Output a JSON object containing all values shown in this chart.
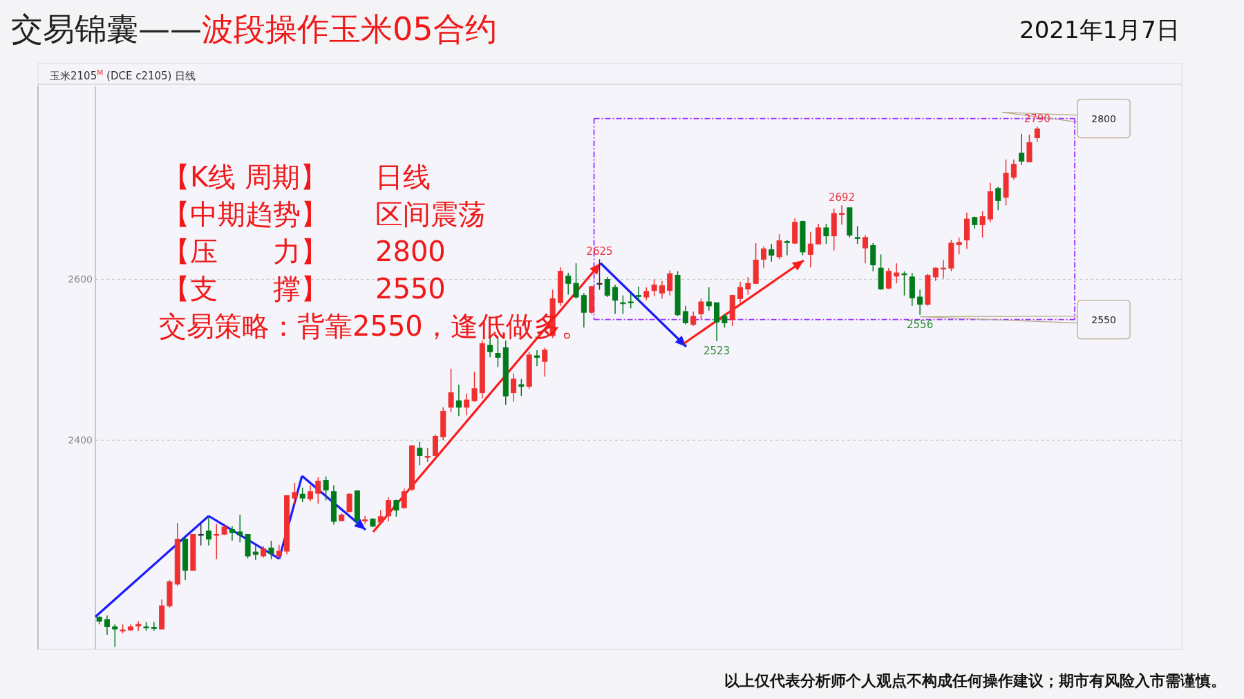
{
  "chart_data": {
    "type": "candlestick",
    "title": "交易锦囊——",
    "subtitle": "波段操作玉米05合约",
    "categories": [
      null,
      null,
      null,
      null,
      null,
      null,
      null,
      null,
      null,
      null,
      null,
      null,
      null,
      null,
      null,
      null,
      null,
      null,
      null,
      null,
      null,
      null,
      null,
      null,
      null,
      null,
      null,
      null,
      null,
      null,
      null,
      null,
      null,
      null,
      null,
      null,
      null,
      null,
      null,
      null,
      null,
      null,
      null,
      null,
      null,
      null,
      null,
      null,
      null,
      null,
      null,
      null,
      null,
      null,
      null,
      null,
      null,
      null,
      null,
      null,
      null,
      null,
      null,
      null,
      null,
      null,
      null,
      null,
      null,
      null,
      null,
      null,
      null,
      null,
      null,
      null,
      null,
      null,
      null,
      null,
      null,
      null,
      null,
      null,
      null,
      null,
      null,
      null,
      null,
      null,
      null,
      null,
      null,
      null,
      null,
      null,
      null,
      null,
      null,
      null,
      null,
      null,
      null,
      null,
      null,
      null,
      null,
      null,
      null,
      null,
      null,
      null,
      null,
      null,
      null,
      null,
      null,
      null,
      null,
      null,
      null
    ],
    "ohlc": [
      [
        2180,
        2181,
        2171,
        2175
      ],
      [
        2177,
        2182,
        2158,
        2168
      ],
      [
        2168,
        2171,
        2143,
        2165
      ],
      [
        2163,
        2171,
        2160,
        2164
      ],
      [
        2164,
        2171,
        2163,
        2168
      ],
      [
        2169,
        2175,
        2163,
        2171
      ],
      [
        2168,
        2174,
        2163,
        2167
      ],
      [
        2167,
        2174,
        2163,
        2166
      ],
      [
        2165,
        2202,
        2165,
        2194
      ],
      [
        2194,
        2226,
        2192,
        2224
      ],
      [
        2221,
        2297,
        2219,
        2277
      ],
      [
        2277,
        2279,
        2226,
        2238
      ],
      [
        2238,
        2283,
        2238,
        2283
      ],
      [
        2283,
        2296,
        2269,
        2283
      ],
      [
        2287,
        2304,
        2269,
        2277
      ],
      [
        2282,
        2296,
        2252,
        2283
      ],
      [
        2283,
        2294,
        2282,
        2292
      ],
      [
        2289,
        2293,
        2275,
        2285
      ],
      [
        2286,
        2307,
        2273,
        2282
      ],
      [
        2283,
        2283,
        2253,
        2256
      ],
      [
        2261,
        2269,
        2251,
        2258
      ],
      [
        2256,
        2268,
        2254,
        2265
      ],
      [
        2266,
        2275,
        2252,
        2259
      ],
      [
        2256,
        2270,
        2253,
        2262
      ],
      [
        2262,
        2331,
        2258,
        2331
      ],
      [
        2328,
        2347,
        2320,
        2335
      ],
      [
        2333,
        2341,
        2323,
        2328
      ],
      [
        2327,
        2344,
        2324,
        2336
      ],
      [
        2334,
        2354,
        2321,
        2349
      ],
      [
        2350,
        2355,
        2325,
        2338
      ],
      [
        2336,
        2344,
        2295,
        2299
      ],
      [
        2300,
        2309,
        2299,
        2307
      ],
      [
        2311,
        2334,
        2311,
        2333
      ],
      [
        2337,
        2337,
        2293,
        2300
      ],
      [
        2300,
        2306,
        2296,
        2301
      ],
      [
        2302,
        2303,
        2292,
        2293
      ],
      [
        2298,
        2313,
        2295,
        2305
      ],
      [
        2306,
        2329,
        2299,
        2325
      ],
      [
        2325,
        2326,
        2305,
        2313
      ],
      [
        2316,
        2340,
        2315,
        2336
      ],
      [
        2339,
        2394,
        2337,
        2393
      ],
      [
        2390,
        2398,
        2369,
        2381
      ],
      [
        2379,
        2390,
        2373,
        2380
      ],
      [
        2381,
        2407,
        2380,
        2405
      ],
      [
        2404,
        2441,
        2400,
        2436
      ],
      [
        2441,
        2489,
        2435,
        2459
      ],
      [
        2449,
        2469,
        2430,
        2441
      ],
      [
        2441,
        2458,
        2431,
        2450
      ],
      [
        2449,
        2485,
        2448,
        2464
      ],
      [
        2459,
        2524,
        2452,
        2520
      ],
      [
        2518,
        2527,
        2503,
        2510
      ],
      [
        2508,
        2529,
        2491,
        2503
      ],
      [
        2515,
        2524,
        2444,
        2455
      ],
      [
        2459,
        2483,
        2448,
        2476
      ],
      [
        2469,
        2476,
        2455,
        2467
      ],
      [
        2467,
        2510,
        2464,
        2506
      ],
      [
        2505,
        2512,
        2492,
        2503
      ],
      [
        2498,
        2515,
        2479,
        2512
      ],
      [
        2530,
        2587,
        2527,
        2576
      ],
      [
        2571,
        2615,
        2567,
        2610
      ],
      [
        2604,
        2608,
        2581,
        2595
      ],
      [
        2595,
        2620,
        2576,
        2578
      ],
      [
        2580,
        2583,
        2540,
        2559
      ],
      [
        2559,
        2592,
        2557,
        2591
      ],
      [
        2595,
        2625,
        2587,
        2595
      ],
      [
        2600,
        2603,
        2578,
        2580
      ],
      [
        2590,
        2593,
        2557,
        2574
      ],
      [
        2571,
        2580,
        2557,
        2570
      ],
      [
        2572,
        2583,
        2564,
        2571
      ],
      [
        2580,
        2591,
        2573,
        2579
      ],
      [
        2578,
        2590,
        2574,
        2585
      ],
      [
        2586,
        2600,
        2579,
        2593
      ],
      [
        2583,
        2598,
        2576,
        2592
      ],
      [
        2586,
        2611,
        2580,
        2607
      ],
      [
        2605,
        2610,
        2554,
        2556
      ],
      [
        2560,
        2567,
        2544,
        2546
      ],
      [
        2544,
        2560,
        2542,
        2554
      ],
      [
        2557,
        2576,
        2550,
        2572
      ],
      [
        2572,
        2590,
        2561,
        2567
      ],
      [
        2571,
        2571,
        2523,
        2547
      ],
      [
        2554,
        2557,
        2540,
        2546
      ],
      [
        2550,
        2581,
        2542,
        2580
      ],
      [
        2576,
        2597,
        2571,
        2590
      ],
      [
        2588,
        2603,
        2581,
        2595
      ],
      [
        2595,
        2645,
        2594,
        2624
      ],
      [
        2625,
        2641,
        2614,
        2638
      ],
      [
        2637,
        2644,
        2622,
        2630
      ],
      [
        2628,
        2656,
        2625,
        2648
      ],
      [
        2647,
        2649,
        2630,
        2646
      ],
      [
        2645,
        2676,
        2644,
        2671
      ],
      [
        2672,
        2673,
        2630,
        2634
      ],
      [
        2631,
        2659,
        2615,
        2644
      ],
      [
        2644,
        2669,
        2644,
        2664
      ],
      [
        2664,
        2669,
        2644,
        2654
      ],
      [
        2654,
        2688,
        2636,
        2682
      ],
      [
        2681,
        2692,
        2668,
        2682
      ],
      [
        2689,
        2689,
        2652,
        2655
      ],
      [
        2652,
        2666,
        2644,
        2651
      ],
      [
        2639,
        2655,
        2620,
        2652
      ],
      [
        2642,
        2645,
        2610,
        2618
      ],
      [
        2614,
        2631,
        2587,
        2588
      ],
      [
        2589,
        2614,
        2588,
        2610
      ],
      [
        2604,
        2620,
        2595,
        2608
      ],
      [
        2607,
        2610,
        2580,
        2606
      ],
      [
        2603,
        2608,
        2567,
        2577
      ],
      [
        2578,
        2587,
        2556,
        2569
      ],
      [
        2569,
        2607,
        2567,
        2605
      ],
      [
        2603,
        2615,
        2598,
        2614
      ],
      [
        2613,
        2624,
        2601,
        2614
      ],
      [
        2614,
        2649,
        2610,
        2645
      ],
      [
        2643,
        2652,
        2631,
        2646
      ],
      [
        2649,
        2683,
        2638,
        2675
      ],
      [
        2677,
        2678,
        2663,
        2668
      ],
      [
        2668,
        2685,
        2652,
        2678
      ],
      [
        2675,
        2720,
        2671,
        2709
      ],
      [
        2713,
        2715,
        2686,
        2698
      ],
      [
        2702,
        2749,
        2692,
        2732
      ],
      [
        2727,
        2749,
        2724,
        2743
      ],
      [
        2757,
        2781,
        2742,
        2747
      ],
      [
        2746,
        2780,
        2746,
        2770
      ],
      [
        2776,
        2790,
        2771,
        2787
      ]
    ],
    "ylim": [
      2140,
      2840
    ],
    "yticks": [
      2400,
      2600
    ],
    "tick_labels": "y",
    "grid": "y",
    "ref_lines": [
      {
        "axis": "y",
        "value": 2800,
        "label": "2800",
        "color": "#9b30ff",
        "line_style": "dashed"
      },
      {
        "axis": "y",
        "value": 2550,
        "label": "2550",
        "color": "#9b30ff",
        "line_style": "dashed"
      }
    ],
    "annotations": [
      "玉米2105$^{M}$ (DCE c2105)  日线",
      "2021年1月7日",
      "【K线 周期】   日线",
      "【中期趋势】   区间震荡",
      "【压　　力】   2800",
      "【支　　撑】   2550",
      "交易策略：背靠2550，逢低做多。",
      "以上仅代表分析师个人观点不构成任何操作建议；期市有风险入市需谨慎。",
      {
        "text": "2625",
        "y": 2625
      },
      {
        "text": "2523",
        "y": 2523
      },
      {
        "text": "2692",
        "y": 2692
      },
      {
        "text": "2556",
        "y": 2556
      },
      {
        "text": "2790",
        "y": 2790
      }
    ]
  }
}
